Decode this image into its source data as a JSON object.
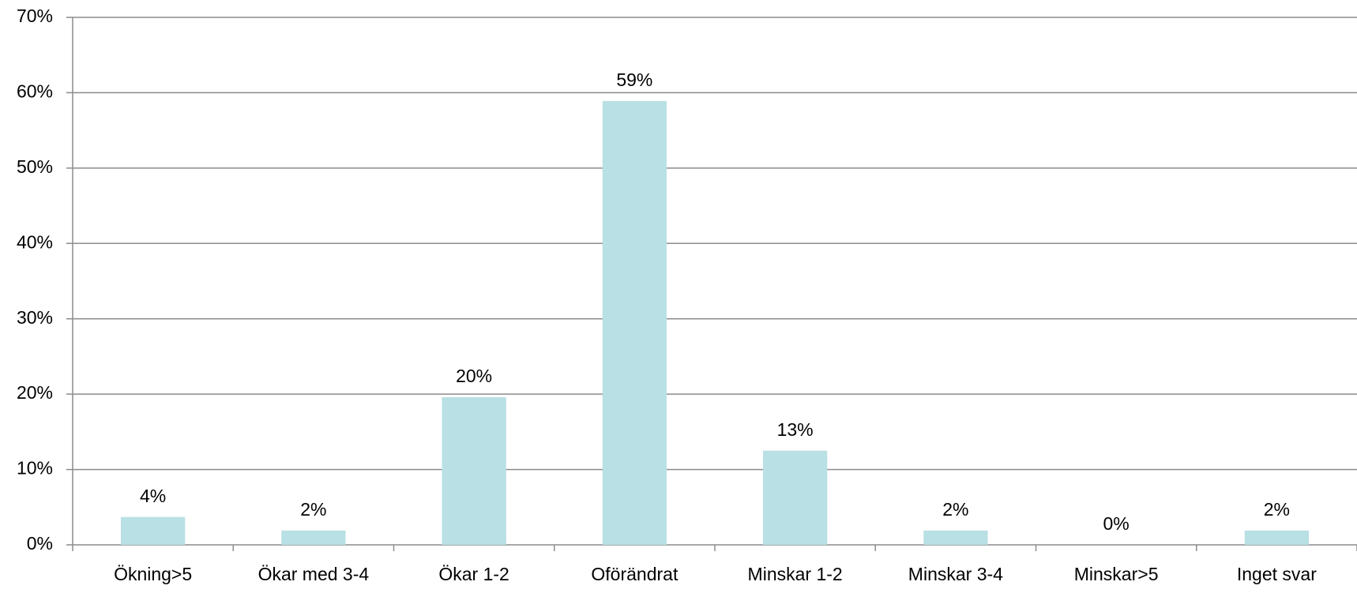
{
  "chart_data": {
    "type": "bar",
    "categories": [
      "Ökning>5",
      "Ökar med 3-4",
      "Ökar 1-2",
      "Oförändrat",
      "Minskar 1-2",
      "Minskar 3-4",
      "Minskar>5",
      "Inget svar"
    ],
    "values": [
      3.7,
      1.9,
      19.6,
      58.9,
      12.5,
      1.9,
      0,
      1.9
    ],
    "value_labels": [
      "4%",
      "2%",
      "20%",
      "59%",
      "13%",
      "2%",
      "0%",
      "2%"
    ],
    "color": "#b9e0e4",
    "ylim": [
      0,
      70
    ],
    "yticks": [
      {
        "value": 0,
        "label": "0%"
      },
      {
        "value": 10,
        "label": "10%"
      },
      {
        "value": 20,
        "label": "20%"
      },
      {
        "value": 30,
        "label": "30%"
      },
      {
        "value": 40,
        "label": "40%"
      },
      {
        "value": 50,
        "label": "50%"
      },
      {
        "value": 60,
        "label": "60%"
      },
      {
        "value": 70,
        "label": "70%"
      }
    ],
    "grid": true
  }
}
